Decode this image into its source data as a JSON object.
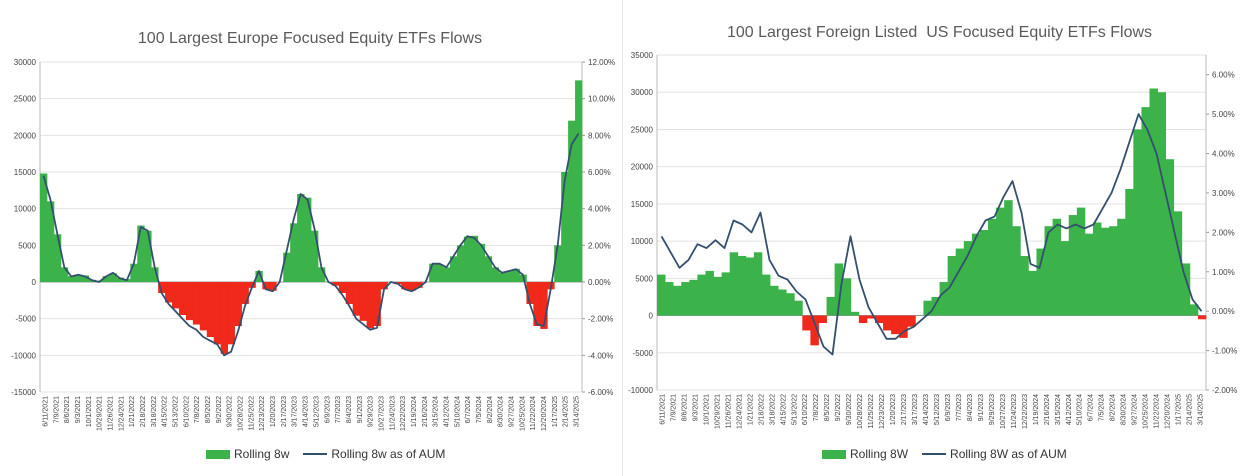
{
  "chart_data": [
    {
      "type": "bar+line",
      "title": "100 Largest Europe Focused Equity ETFs Flows",
      "ylim": [
        -15000,
        30000
      ],
      "yticks": [
        -15000,
        -10000,
        -5000,
        0,
        5000,
        10000,
        15000,
        20000,
        25000,
        30000
      ],
      "y2lim": [
        -6,
        12
      ],
      "y2ticks": [
        "-6.00%",
        "-4.00%",
        "-2.00%",
        "0.00%",
        "2.00%",
        "4.00%",
        "6.00%",
        "8.00%",
        "10.00%",
        "12.00%"
      ],
      "x_ticks": [
        "6/11/2021",
        "7/9/2021",
        "8/6/2021",
        "9/3/2021",
        "10/1/2021",
        "10/29/2021",
        "11/26/2021",
        "12/24/2021",
        "1/21/2022",
        "2/18/2022",
        "3/18/2022",
        "4/15/2022",
        "5/13/2022",
        "6/10/2022",
        "7/8/2022",
        "8/5/2022",
        "9/2/2022",
        "9/30/2022",
        "10/28/2022",
        "11/25/2022",
        "12/23/2022",
        "1/20/2023",
        "2/17/2023",
        "3/17/2023",
        "4/14/2023",
        "5/12/2023",
        "6/9/2023",
        "7/7/2023",
        "8/4/2023",
        "9/1/2023",
        "9/29/2023",
        "10/27/2023",
        "11/24/2023",
        "12/22/2023",
        "1/19/2024",
        "2/16/2024",
        "3/15/2024",
        "4/12/2024",
        "5/10/2024",
        "6/7/2024",
        "7/5/2024",
        "8/2/2024",
        "8/30/2024",
        "9/27/2024",
        "10/25/2024",
        "11/22/2024",
        "12/20/2024",
        "1/17/2025",
        "2/14/2025",
        "3/14/2025"
      ],
      "series": [
        {
          "name": "Rolling 8w",
          "kind": "bar",
          "axis": "left",
          "pos_color": "#3cb34a",
          "neg_color": "#f0291a",
          "values": [
            14800,
            11000,
            6500,
            2000,
            800,
            1000,
            900,
            300,
            200,
            800,
            1200,
            600,
            400,
            2500,
            7700,
            7000,
            2000,
            -1500,
            -2800,
            -3600,
            -4500,
            -5200,
            -5800,
            -6600,
            -7500,
            -8500,
            -9800,
            -8500,
            -6000,
            -3000,
            -800,
            1500,
            -1000,
            -1200,
            0,
            4000,
            8000,
            12000,
            11500,
            7000,
            2000,
            0,
            -500,
            -1500,
            -3000,
            -4600,
            -5300,
            -6300,
            -6000,
            -1000,
            0,
            -300,
            -1000,
            -1200,
            -800,
            0,
            2500,
            2400,
            2000,
            3500,
            5000,
            6200,
            6300,
            5200,
            3500,
            2000,
            1300,
            1500,
            1800,
            1000,
            -3000,
            -6000,
            -6400,
            -1000,
            5000,
            15000,
            22000,
            27500
          ],
          "line_values": [
            5.8,
            4.5,
            2.6,
            0.8,
            0.3,
            0.4,
            0.3,
            0.1,
            0.0,
            0.3,
            0.5,
            0.2,
            0.1,
            1.0,
            3.0,
            2.8,
            0.8,
            -0.6,
            -1.2,
            -1.6,
            -2.0,
            -2.4,
            -2.6,
            -3.0,
            -3.2,
            -3.4,
            -4.0,
            -3.8,
            -2.7,
            -1.3,
            -0.3,
            0.6,
            -0.4,
            -0.5,
            0.0,
            1.7,
            3.4,
            4.8,
            4.5,
            2.9,
            0.8,
            0.0,
            -0.2,
            -0.7,
            -1.3,
            -2.0,
            -2.3,
            -2.6,
            -2.5,
            -0.4,
            0.0,
            -0.1,
            -0.4,
            -0.5,
            -0.3,
            0.0,
            1.0,
            1.0,
            0.8,
            1.4,
            2.0,
            2.5,
            2.4,
            2.0,
            1.4,
            0.8,
            0.5,
            0.6,
            0.7,
            0.4,
            -1.2,
            -2.3,
            -2.4,
            -0.4,
            2.0,
            5.5,
            7.5,
            8.1
          ]
        },
        {
          "name": "Rolling 8w as of AUM",
          "kind": "line",
          "axis": "right",
          "color": "#34506e"
        }
      ]
    },
    {
      "type": "bar+line",
      "title": "100 Largest Foreign Listed  US Focused Equity ETFs Flows",
      "ylim": [
        -10000,
        35000
      ],
      "yticks": [
        -10000,
        -5000,
        0,
        5000,
        10000,
        15000,
        20000,
        25000,
        30000,
        35000
      ],
      "y2lim": [
        -2,
        6.5
      ],
      "y2ticks": [
        "-2.00%",
        "-1.00%",
        "0.00%",
        "1.00%",
        "2.00%",
        "3.00%",
        "4.00%",
        "5.00%",
        "6.00%"
      ],
      "x_ticks": [
        "6/11/2021",
        "7/9/2021",
        "8/6/2021",
        "9/3/2021",
        "10/1/2021",
        "10/29/2021",
        "11/26/2021",
        "12/24/2021",
        "1/21/2022",
        "2/18/2022",
        "3/18/2022",
        "4/15/2022",
        "5/13/2022",
        "6/10/2022",
        "7/8/2022",
        "8/5/2022",
        "9/2/2022",
        "9/30/2022",
        "10/28/2022",
        "11/25/2022",
        "12/23/2022",
        "1/20/2023",
        "2/17/2023",
        "3/17/2023",
        "4/14/2023",
        "5/12/2023",
        "6/9/2023",
        "7/7/2023",
        "8/4/2023",
        "9/1/2023",
        "9/29/2023",
        "10/27/2023",
        "11/24/2023",
        "12/22/2023",
        "1/19/2024",
        "2/16/2024",
        "3/15/2024",
        "4/12/2024",
        "5/10/2024",
        "6/7/2024",
        "7/5/2024",
        "8/2/2024",
        "8/30/2024",
        "9/27/2024",
        "10/25/2024",
        "11/22/2024",
        "12/20/2024",
        "1/17/2025",
        "2/14/2025",
        "3/14/2025"
      ],
      "series": [
        {
          "name": "Rolling 8W",
          "kind": "bar",
          "axis": "left",
          "pos_color": "#3cb34a",
          "neg_color": "#f0291a",
          "values": [
            5500,
            4500,
            4000,
            4500,
            4800,
            5500,
            6000,
            5200,
            5800,
            8500,
            8000,
            7800,
            8500,
            5500,
            4000,
            3500,
            3000,
            2000,
            -2000,
            -4000,
            -1000,
            2500,
            7000,
            5000,
            500,
            -1000,
            -400,
            -1000,
            -2000,
            -2500,
            -3000,
            -1500,
            0,
            2000,
            2500,
            4500,
            8000,
            9000,
            10000,
            11000,
            11500,
            13000,
            14500,
            15500,
            12000,
            8000,
            6000,
            9000,
            12000,
            13000,
            10000,
            13500,
            14500,
            11000,
            12500,
            11800,
            12000,
            13000,
            17000,
            25000,
            28000,
            30500,
            30000,
            21000,
            14000,
            7000,
            1500,
            -500
          ],
          "line_values": [
            1.9,
            1.5,
            1.1,
            1.3,
            1.7,
            1.6,
            1.8,
            1.6,
            2.3,
            2.2,
            2.0,
            2.5,
            1.3,
            0.9,
            0.8,
            0.5,
            0.3,
            -0.3,
            -0.9,
            -1.1,
            0.7,
            1.9,
            0.8,
            0.1,
            -0.3,
            -0.7,
            -0.7,
            -0.5,
            -0.4,
            -0.2,
            0.0,
            0.4,
            0.6,
            1.0,
            1.4,
            1.9,
            2.3,
            2.4,
            2.9,
            3.3,
            2.5,
            1.2,
            1.1,
            2.0,
            2.2,
            2.1,
            2.2,
            2.1,
            2.2,
            2.6,
            3.0,
            3.6,
            4.3,
            5.0,
            4.6,
            4.0,
            3.0,
            2.0,
            1.0,
            0.3,
            0.0
          ],
          "line_x_from_bars": false
        },
        {
          "name": "Rolling 8W as of AUM",
          "kind": "line",
          "axis": "right",
          "color": "#34506e"
        }
      ]
    }
  ]
}
